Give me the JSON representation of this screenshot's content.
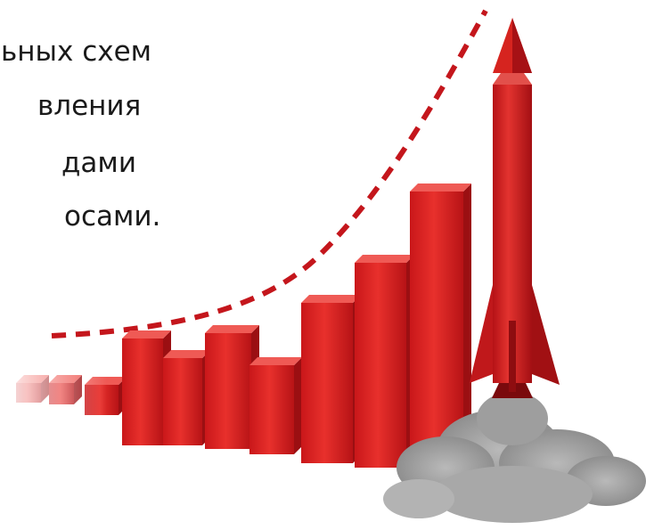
{
  "text": {
    "lines": [
      "ьных схем",
      "вления",
      "дами",
      "осами."
    ]
  },
  "colors": {
    "bar_front": "#d9201f",
    "bar_side": "#9b0f12",
    "bar_top": "#ef5a55",
    "dash": "#c4161c",
    "smoke": "#9a9a9a",
    "text": "#1a1a1a"
  },
  "icons": {
    "rocket": "rocket-icon",
    "smoke": "smoke-cloud"
  }
}
